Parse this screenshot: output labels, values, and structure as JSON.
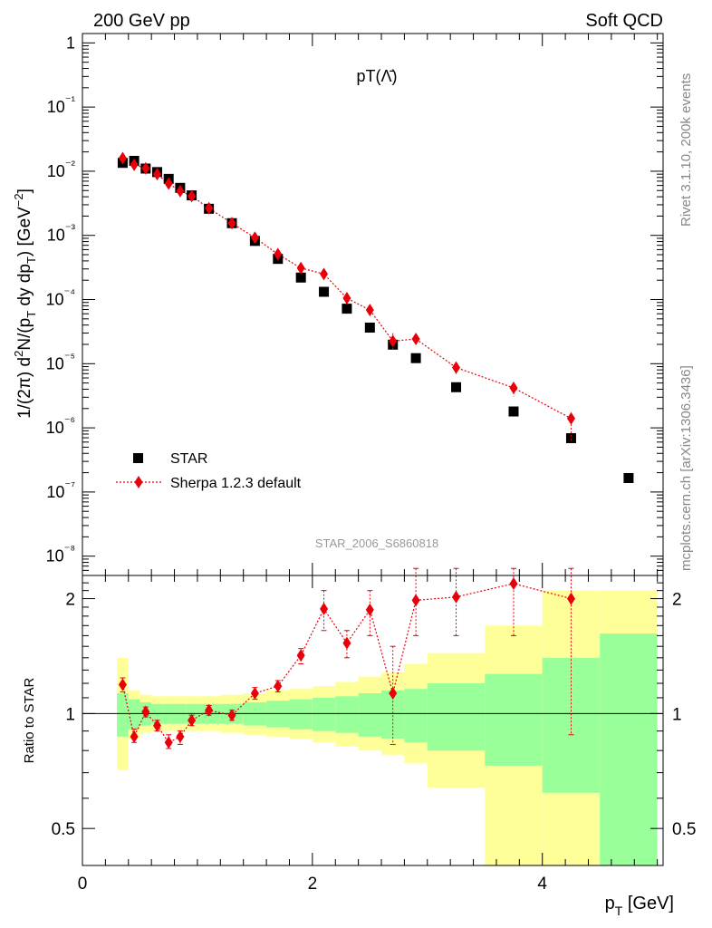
{
  "header": {
    "left": "200 GeV pp",
    "right": "Soft QCD"
  },
  "side_labels": {
    "top": "Rivet 3.1.10,  200k events",
    "bottom": "mcplots.cern.ch [arXiv:1306.3436]"
  },
  "watermark": "STAR_2006_S6860818",
  "legend": {
    "data_label": "STAR",
    "mc_label": "Sherpa 1.2.3 default"
  },
  "colors": {
    "data": "#000000",
    "mc": "#e8000b",
    "band_inner": "#99ff99",
    "band_outer": "#ffff99"
  },
  "chart_data": [
    {
      "type": "scatter",
      "panel": "main",
      "title": "pT(Λ̄)",
      "xlabel": "p_T [GeV]",
      "ylabel": "1/(2π) d²N/(p_T dy dp_T) [GeV⁻²]",
      "yscale": "log",
      "xlim": [
        0,
        5.05
      ],
      "ylim": [
        5e-09,
        1.4
      ],
      "y_ticks": [
        "10⁻⁸",
        "10⁻⁷",
        "10⁻⁶",
        "10⁻⁵",
        "10⁻⁴",
        "10⁻³",
        "10⁻²",
        "10⁻¹",
        "1"
      ],
      "legend_position": "bottom-left",
      "series": [
        {
          "name": "STAR",
          "marker": "square",
          "x": [
            0.35,
            0.45,
            0.55,
            0.65,
            0.75,
            0.85,
            0.95,
            1.1,
            1.3,
            1.5,
            1.7,
            1.9,
            2.1,
            2.3,
            2.5,
            2.7,
            2.9,
            3.25,
            3.75,
            4.25,
            4.75
          ],
          "y": [
            0.0135,
            0.0145,
            0.011,
            0.0097,
            0.0076,
            0.0055,
            0.0042,
            0.0026,
            0.00155,
            0.00082,
            0.00043,
            0.00022,
            0.000132,
            7.2e-05,
            3.65e-05,
            1.98e-05,
            1.22e-05,
            4.3e-06,
            1.8e-06,
            6.9e-07,
            1.65e-07
          ]
        },
        {
          "name": "Sherpa 1.2.3 default",
          "marker": "diamond",
          "line": "dotted",
          "x": [
            0.35,
            0.45,
            0.55,
            0.65,
            0.75,
            0.85,
            0.95,
            1.1,
            1.3,
            1.5,
            1.7,
            1.9,
            2.1,
            2.3,
            2.5,
            2.7,
            2.9,
            3.25,
            3.75,
            4.25
          ],
          "y": [
            0.016,
            0.0126,
            0.0111,
            0.009,
            0.0064,
            0.0049,
            0.0041,
            0.00265,
            0.00155,
            0.00092,
            0.00051,
            0.00031,
            0.00025,
            0.000105,
            6.85e-05,
            2.25e-05,
            2.43e-05,
            8.7e-06,
            4.2e-06,
            1.4e-06
          ]
        }
      ]
    },
    {
      "type": "line",
      "panel": "ratio",
      "ylabel": "Ratio to STAR",
      "xlabel": "p_T [GeV]",
      "yscale": "log",
      "xlim": [
        0,
        5.05
      ],
      "ylim": [
        0.4,
        2.3
      ],
      "x_ticks": [
        "0",
        "2",
        "4"
      ],
      "y_ticks": [
        "0.5",
        "1",
        "2"
      ],
      "reference_line": 1,
      "bands": {
        "edges": [
          0.3,
          0.4,
          0.5,
          0.6,
          0.7,
          0.8,
          0.9,
          1.0,
          1.2,
          1.4,
          1.6,
          1.8,
          2.0,
          2.2,
          2.4,
          2.6,
          2.8,
          3.0,
          3.5,
          4.0,
          4.5,
          5.0
        ],
        "inner_low": [
          0.87,
          0.91,
          0.93,
          0.94,
          0.94,
          0.94,
          0.94,
          0.94,
          0.94,
          0.93,
          0.92,
          0.91,
          0.9,
          0.89,
          0.87,
          0.86,
          0.84,
          0.8,
          0.73,
          0.62,
          0.38
        ],
        "inner_high": [
          1.13,
          1.09,
          1.07,
          1.06,
          1.06,
          1.06,
          1.06,
          1.06,
          1.06,
          1.07,
          1.08,
          1.09,
          1.1,
          1.11,
          1.13,
          1.15,
          1.16,
          1.2,
          1.27,
          1.4,
          1.62
        ],
        "outer_low": [
          0.71,
          0.86,
          0.89,
          0.9,
          0.9,
          0.9,
          0.9,
          0.9,
          0.89,
          0.88,
          0.87,
          0.86,
          0.84,
          0.82,
          0.8,
          0.78,
          0.74,
          0.64,
          0.34,
          0.34,
          0.34
        ],
        "outer_high": [
          1.4,
          1.15,
          1.12,
          1.11,
          1.11,
          1.11,
          1.11,
          1.11,
          1.12,
          1.13,
          1.15,
          1.16,
          1.18,
          1.21,
          1.25,
          1.28,
          1.35,
          1.44,
          1.7,
          2.1,
          2.1
        ]
      },
      "series": [
        {
          "name": "Sherpa 1.2.3 default",
          "x": [
            0.35,
            0.45,
            0.55,
            0.65,
            0.75,
            0.85,
            0.95,
            1.1,
            1.3,
            1.5,
            1.7,
            1.9,
            2.1,
            2.3,
            2.5,
            2.7,
            2.9,
            3.25,
            3.75,
            4.25
          ],
          "y": [
            1.19,
            0.87,
            1.01,
            0.93,
            0.84,
            0.87,
            0.96,
            1.02,
            0.99,
            1.13,
            1.18,
            1.42,
            1.88,
            1.53,
            1.87,
            1.13,
            1.98,
            2.02,
            2.19,
            2.0
          ],
          "err_low": [
            1.14,
            0.84,
            0.98,
            0.9,
            0.81,
            0.83,
            0.93,
            0.99,
            0.96,
            1.09,
            1.14,
            1.35,
            1.65,
            1.4,
            1.6,
            0.83,
            1.6,
            1.6,
            1.6,
            0.88
          ],
          "err_high": [
            1.24,
            0.91,
            1.04,
            0.96,
            0.88,
            0.9,
            0.99,
            1.05,
            1.02,
            1.17,
            1.22,
            1.48,
            2.1,
            1.65,
            2.1,
            1.5,
            2.4,
            2.4,
            2.4,
            2.4
          ]
        }
      ]
    }
  ]
}
